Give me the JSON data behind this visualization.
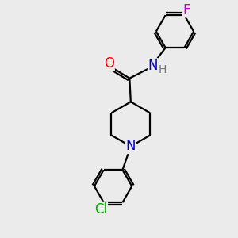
{
  "background_color": "#ebebeb",
  "bond_color": "#000000",
  "bond_width": 1.6,
  "atom_colors": {
    "N_amide": "#0000cc",
    "N_pipe": "#0000cc",
    "O": "#ff0000",
    "Cl": "#00aa00",
    "F": "#cc00cc",
    "H": "#777777",
    "C": "#000000"
  },
  "ring_r": 0.85,
  "bond_r": 0.75
}
